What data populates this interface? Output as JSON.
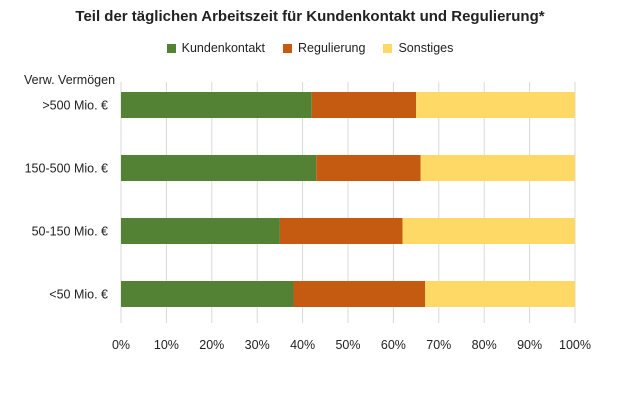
{
  "chart_data": {
    "type": "bar",
    "orientation": "horizontal",
    "stacked": true,
    "title": "Teil der täglichen Arbeitszeit für Kundenkontakt  und  Regulierung*",
    "ylabel": "Verw. Vermögen",
    "xlabel": "",
    "xlim": [
      0,
      100
    ],
    "x_unit": "%",
    "x_ticks": [
      "0%",
      "10%",
      "20%",
      "30%",
      "40%",
      "50%",
      "60%",
      "70%",
      "80%",
      "90%",
      "100%"
    ],
    "categories": [
      ">500 Mio. €",
      "150-500 Mio. €",
      "50-150 Mio. €",
      "<50 Mio. €"
    ],
    "series": [
      {
        "name": "Kundenkontakt",
        "color": "#548235",
        "values": [
          42,
          43,
          35,
          38
        ]
      },
      {
        "name": "Regulierung",
        "color": "#c55a11",
        "values": [
          23,
          23,
          27,
          29
        ]
      },
      {
        "name": "Sonstiges",
        "color": "#ffd966",
        "values": [
          35,
          34,
          38,
          33
        ]
      }
    ],
    "grid": true,
    "legend_position": "top"
  }
}
